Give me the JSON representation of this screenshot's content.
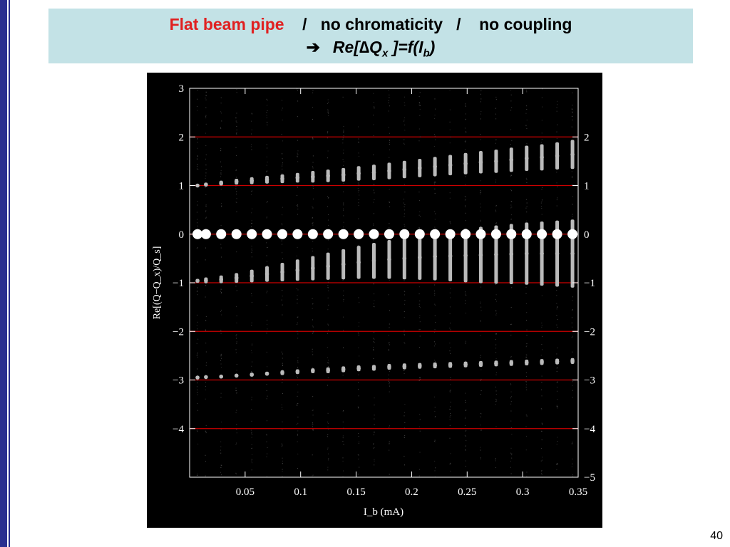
{
  "slide": {
    "title_red": "Flat beam pipe",
    "title_rest": "    /   no chromaticity   /    no coupling",
    "subtitle_arrow": "➔",
    "subtitle_main": "Re[∆Q",
    "subtitle_x": "x",
    "subtitle_mid": " ]=f(I",
    "subtitle_b": "b",
    "subtitle_end": ")",
    "page_number": "40"
  },
  "colors": {
    "edge_bar": "#2a2f8f",
    "title_box_bg": "#c3e2e6",
    "title_accent": "#e02020",
    "plot_bg": "#000000",
    "grid_lines": "#cc0000",
    "axes": "#ffffff",
    "points": "#bbbbbb",
    "zero_markers": "#ffffff"
  },
  "chart_data": {
    "type": "scatter",
    "title": "",
    "xlabel": "I_b (mA)",
    "ylabel": "Re[(Q−Q_x)/Q_s]",
    "xlim": [
      0,
      0.35
    ],
    "ylim": [
      -5,
      3
    ],
    "xticks": [
      0.05,
      0.1,
      0.15,
      0.2,
      0.25,
      0.3,
      0.35
    ],
    "xtick_labels": [
      "0.05",
      "0.1",
      "0.15",
      "0.2",
      "0.25",
      "0.3",
      "0.35"
    ],
    "yticks_left": [
      3,
      2,
      1,
      0,
      -1,
      -2,
      -3,
      -4
    ],
    "ytick_labels_left": [
      "3",
      "2",
      "1",
      "0",
      "−1",
      "−2",
      "−3",
      "−4"
    ],
    "yticks_right": [
      2,
      1,
      0,
      -1,
      -2,
      -3,
      -4,
      -5
    ],
    "ytick_labels_right": [
      "2",
      "1",
      "0",
      "−1",
      "−2",
      "−3",
      "−4",
      "−5"
    ],
    "grid": "horizontal lines at integer y",
    "grid_y": [
      2,
      1,
      0,
      -1,
      -2,
      -3,
      -4
    ],
    "x": [
      0.0071,
      0.0147,
      0.0284,
      0.0422,
      0.056,
      0.0697,
      0.0835,
      0.0972,
      0.111,
      0.1247,
      0.1385,
      0.1523,
      0.166,
      0.1798,
      0.1935,
      0.2073,
      0.221,
      0.2348,
      0.2486,
      0.2623,
      0.2761,
      0.2898,
      0.3036,
      0.3173,
      0.3311,
      0.3449
    ],
    "series": [
      {
        "values": [
          1.0,
          1.02,
          1.05,
          1.08,
          1.1,
          1.12,
          1.14,
          1.16,
          1.18,
          1.2,
          1.22,
          1.25,
          1.27,
          1.3,
          1.33,
          1.36,
          1.39,
          1.42,
          1.45,
          1.48,
          1.5,
          1.53,
          1.56,
          1.58,
          1.61,
          1.64
        ],
        "spread": [
          0.03,
          0.04,
          0.05,
          0.06,
          0.07,
          0.08,
          0.09,
          0.1,
          0.12,
          0.13,
          0.14,
          0.15,
          0.16,
          0.17,
          0.18,
          0.19,
          0.2,
          0.21,
          0.22,
          0.23,
          0.24,
          0.25,
          0.26,
          0.27,
          0.28,
          0.3
        ]
      },
      {
        "values": [
          -0.96,
          -0.95,
          -0.93,
          -0.9,
          -0.86,
          -0.82,
          -0.78,
          -0.74,
          -0.7,
          -0.66,
          -0.62,
          -0.58,
          -0.55,
          -0.52,
          -0.5,
          -0.48,
          -0.46,
          -0.45,
          -0.44,
          -0.43,
          -0.42,
          -0.41,
          -0.4,
          -0.4,
          -0.4,
          -0.4
        ],
        "spread": [
          0.04,
          0.06,
          0.08,
          0.1,
          0.13,
          0.16,
          0.19,
          0.22,
          0.25,
          0.28,
          0.31,
          0.34,
          0.37,
          0.4,
          0.43,
          0.46,
          0.49,
          0.52,
          0.55,
          0.58,
          0.6,
          0.62,
          0.64,
          0.66,
          0.68,
          0.7
        ]
      },
      {
        "values": [
          -2.95,
          -2.94,
          -2.93,
          -2.91,
          -2.89,
          -2.87,
          -2.85,
          -2.83,
          -2.81,
          -2.8,
          -2.78,
          -2.76,
          -2.75,
          -2.73,
          -2.72,
          -2.71,
          -2.7,
          -2.69,
          -2.68,
          -2.67,
          -2.66,
          -2.65,
          -2.64,
          -2.63,
          -2.62,
          -2.61
        ],
        "spread": [
          0.02,
          0.02,
          0.03,
          0.03,
          0.04,
          0.04,
          0.05,
          0.05,
          0.05,
          0.06,
          0.06,
          0.06,
          0.06,
          0.06,
          0.06,
          0.06,
          0.06,
          0.06,
          0.06,
          0.06,
          0.06,
          0.06,
          0.06,
          0.06,
          0.06,
          0.06
        ]
      },
      {
        "values": [
          0,
          0,
          0,
          0,
          0,
          0,
          0,
          0,
          0,
          0,
          0,
          0,
          0,
          0,
          0,
          0,
          0,
          0,
          0,
          0,
          0,
          0,
          0,
          0,
          0,
          0
        ],
        "spread": [
          0,
          0,
          0,
          0,
          0,
          0,
          0,
          0,
          0,
          0,
          0,
          0,
          0,
          0,
          0,
          0,
          0,
          0,
          0,
          0,
          0,
          0,
          0,
          0,
          0,
          0
        ]
      }
    ]
  }
}
